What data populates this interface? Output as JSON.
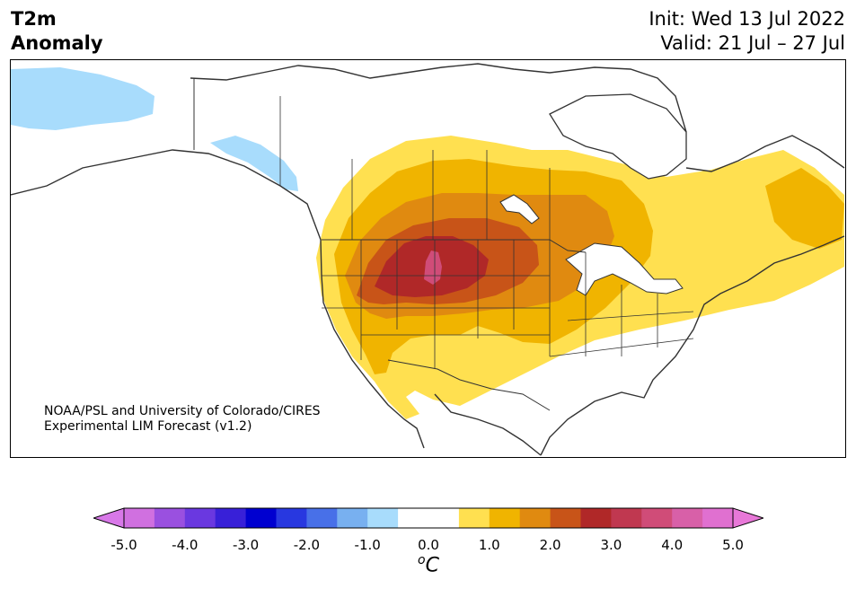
{
  "title": {
    "left_line1": "T2m",
    "left_line2": "Anomaly",
    "init": "Init: Wed 13 Jul 2022",
    "valid": "Valid: 21 Jul – 27 Jul"
  },
  "credit": {
    "line1": "NOAA/PSL and University of Colorado/CIRES",
    "line2": "Experimental LIM Forecast (v1.2)"
  },
  "colorbar": {
    "unit_sup": "o",
    "unit_main": "C",
    "ticks": [
      "-5.0",
      "-4.0",
      "-3.0",
      "-2.0",
      "-1.0",
      "0.0",
      "1.0",
      "2.0",
      "3.0",
      "4.0",
      "5.0"
    ],
    "under_color": "#d878e8",
    "over_color": "#e878d8",
    "colors": [
      "#d070e0",
      "#9a50e0",
      "#6a38e0",
      "#3820d8",
      "#0000d0",
      "#2838e0",
      "#4870e8",
      "#78b0f0",
      "#a8dcfc",
      "#ffffff",
      "#ffffff",
      "#ffe050",
      "#f0b400",
      "#e08a10",
      "#c85418",
      "#b02828",
      "#c03850",
      "#d04c78",
      "#d860a8",
      "#e070d0"
    ]
  },
  "map": {
    "region": "North America",
    "variable": "2m temperature anomaly",
    "anomaly_colors": {
      "cold_light": "#a8dcfc",
      "warm_1": "#ffe050",
      "warm_2": "#f0b400",
      "warm_3": "#e08a10",
      "warm_4": "#c85418",
      "warm_5": "#b02828",
      "warm_6": "#d04c78"
    }
  }
}
